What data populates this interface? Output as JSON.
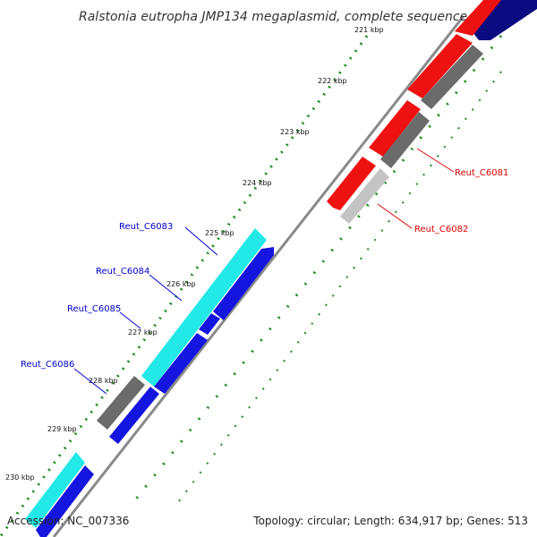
{
  "title": "Ralstonia eutropha JMP134 megaplasmid, complete sequence",
  "footer": {
    "accession": "Accession: NC_007336",
    "summary": "Topology: circular; Length: 634,917 bp; Genes: 513"
  },
  "colors": {
    "red": "#ee1111",
    "blue": "#1515e0",
    "navy": "#0b0b80",
    "cyan": "#22e8e8",
    "gray": "#6b6b6b",
    "lightgray": "#c4c4c4",
    "dots": "#1a8a1a",
    "backbone": "#8a8a8a",
    "label_red": "#dd0000",
    "label_blue": "#0000cc"
  },
  "ticks": [
    "221 kbp",
    "222 kbp",
    "223 kbp",
    "224 kbp",
    "225 kbp",
    "226 kbp",
    "227 kbp",
    "228 kbp",
    "229 kbp",
    "230 kbp"
  ],
  "gene_labels": [
    {
      "name": "Reut_C6081",
      "color": "label_red"
    },
    {
      "name": "Reut_C6082",
      "color": "label_red"
    },
    {
      "name": "Reut_C6083",
      "color": "label_blue"
    },
    {
      "name": "Reut_C6084",
      "color": "label_blue"
    },
    {
      "name": "Reut_C6085",
      "color": "label_blue"
    },
    {
      "name": "Reut_C6086",
      "color": "label_blue"
    }
  ]
}
